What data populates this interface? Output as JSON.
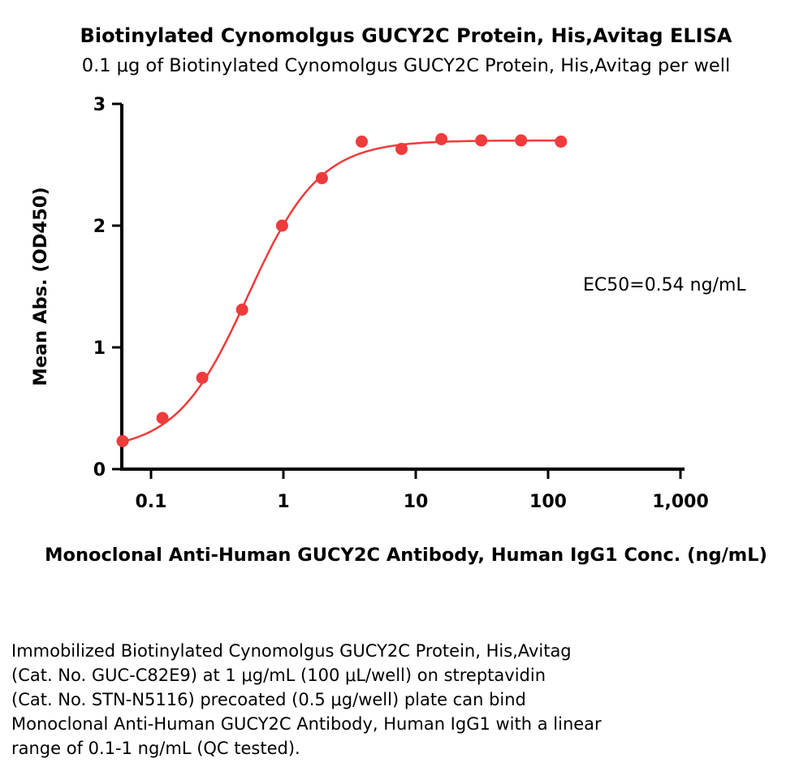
{
  "page": {
    "caption_lines": [
      "Immobilized Biotinylated Cynomolgus GUCY2C Protein, His,Avitag",
      "(Cat. No. GUC-C82E9) at 1 μg/mL (100 μL/well) on streptavidin",
      "(Cat. No. STN-N5116) precoated (0.5 μg/well) plate can bind",
      "Monoclonal Anti-Human GUCY2C Antibody, Human IgG1 with a linear",
      "range of 0.1-1 ng/mL (QC tested)."
    ]
  },
  "chart_data": {
    "type": "scatter",
    "title": "Biotinylated Cynomolgus GUCY2C Protein, His,Avitag ELISA",
    "subtitle": "0.1 μg of Biotinylated Cynomolgus GUCY2C Protein, His,Avitag per well",
    "xlabel": "Monoclonal Anti-Human GUCY2C Antibody, Human IgG1 Conc. (ng/mL)",
    "ylabel": "Mean Abs. (OD450)",
    "x_scale": "log10",
    "xlim": [
      0.06,
      1000
    ],
    "ylim": [
      0,
      3
    ],
    "x_ticks": [
      0.1,
      1,
      10,
      100,
      1000
    ],
    "x_tick_labels": [
      "0.1",
      "1",
      "10",
      "100",
      "1,000"
    ],
    "y_ticks": [
      0,
      1,
      2,
      3
    ],
    "y_tick_labels": [
      "0",
      "1",
      "2",
      "3"
    ],
    "grid": false,
    "legend": "none",
    "annotation": "EC50=0.54 ng/mL",
    "series": [
      {
        "name": "Mean Abs. (OD450)",
        "color": "#ee3b3c",
        "x": [
          0.061,
          0.122,
          0.244,
          0.488,
          0.977,
          1.953,
          3.906,
          7.813,
          15.625,
          31.25,
          62.5,
          125
        ],
        "y": [
          0.23,
          0.42,
          0.75,
          1.31,
          2.0,
          2.39,
          2.69,
          2.63,
          2.71,
          2.7,
          2.7,
          2.69
        ]
      }
    ],
    "fit": {
      "model": "4PL",
      "bottom": 0.15,
      "top": 2.7,
      "ec50": 0.54,
      "hill": 1.6
    }
  }
}
